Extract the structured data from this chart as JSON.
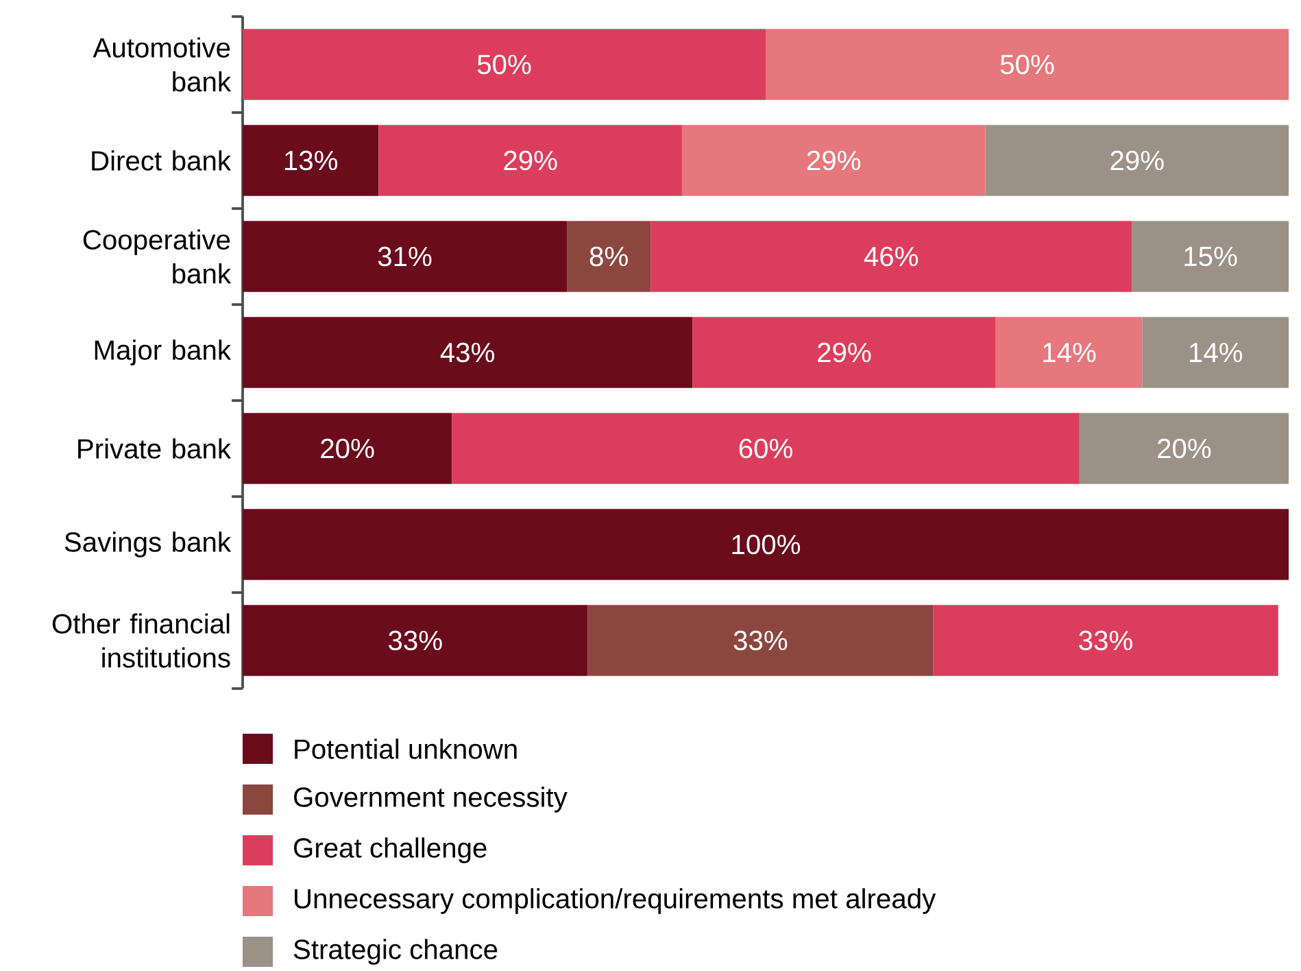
{
  "chart_data": {
    "type": "bar",
    "orientation": "horizontal",
    "stacked": true,
    "categories": [
      "Automotive bank",
      "Direct bank",
      "Cooperative bank",
      "Major bank",
      "Private bank",
      "Savings bank",
      "Other financial institutions"
    ],
    "xlim": [
      0,
      100
    ],
    "tick_labels": "y",
    "legend": "bottom",
    "series": [
      {
        "name": "Potential unknown",
        "color": "#6a0c1c",
        "values": [
          null,
          13,
          31,
          43,
          20,
          100,
          33
        ],
        "value_labels": [
          null,
          "13%",
          "31%",
          "43%",
          "20%",
          "100%",
          "33%"
        ]
      },
      {
        "name": "Government necessity",
        "color": "#8c4640",
        "values": [
          null,
          null,
          8,
          null,
          null,
          null,
          33
        ],
        "value_labels": [
          null,
          null,
          "8%",
          null,
          null,
          null,
          "33%"
        ]
      },
      {
        "name": "Great challenge",
        "color": "#dd3d5c",
        "values": [
          50,
          29,
          46,
          29,
          60,
          null,
          33
        ],
        "value_labels": [
          "50%",
          "29%",
          "46%",
          "29%",
          "60%",
          null,
          "33%"
        ]
      },
      {
        "name": "Unnecessary complication/requirements met already",
        "color": "#e5777d",
        "values": [
          50,
          29,
          null,
          14,
          null,
          null,
          null
        ],
        "value_labels": [
          "50%",
          "29%",
          null,
          "14%",
          null,
          null,
          null
        ]
      },
      {
        "name": "Strategic chance",
        "color": "#9c9187",
        "values": [
          null,
          29,
          15,
          14,
          20,
          null,
          null
        ],
        "value_labels": [
          null,
          "29%",
          "15%",
          "14%",
          "20%",
          null,
          null
        ]
      }
    ]
  }
}
